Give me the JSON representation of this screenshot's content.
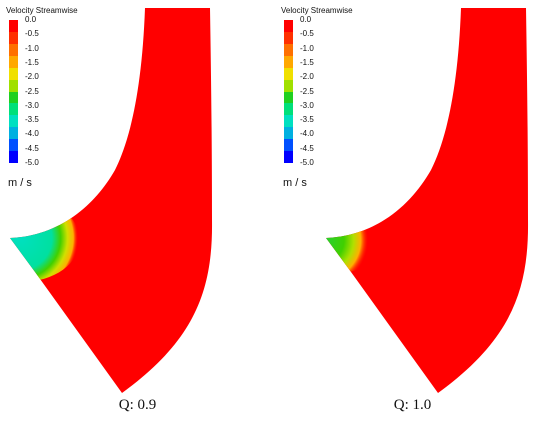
{
  "colorbar": {
    "title": "Velocity Streamwise",
    "units": "m / s",
    "ticks": [
      "0.0",
      "-0.5",
      "-1.0",
      "-1.5",
      "-2.0",
      "-2.5",
      "-3.0",
      "-3.5",
      "-4.0",
      "-4.5",
      "-5.0"
    ],
    "colors": [
      "#ff0000",
      "#ff3000",
      "#ff7000",
      "#ffa800",
      "#f0e000",
      "#a0e000",
      "#20d020",
      "#00e07a",
      "#00e0c0",
      "#00b0e0",
      "#0050ff",
      "#0000ff"
    ]
  },
  "panels": [
    {
      "caption": "Q: 0.9"
    },
    {
      "caption": "Q: 1.0"
    }
  ],
  "colors": {
    "flow_field": "#ff0000",
    "reverse_flow_inner": "#00e0a0",
    "reverse_flow_mid": "#40d000",
    "reverse_flow_outer": "#ffb000"
  }
}
